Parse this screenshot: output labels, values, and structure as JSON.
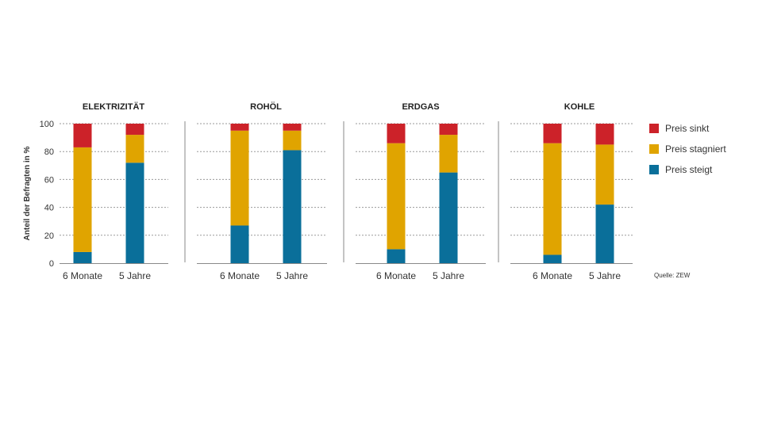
{
  "chart_data": {
    "type": "bar",
    "stacked": true,
    "ylabel": "Anteil der Befragten in %",
    "ylim": [
      0,
      100
    ],
    "yticks": [
      0,
      20,
      40,
      60,
      80,
      100
    ],
    "grid": true,
    "legend_position": "right",
    "source": "Quelle: ZEW",
    "categories": [
      "6 Monate",
      "5 Jahre"
    ],
    "series_meta": [
      {
        "name": "Preis steigt",
        "color": "#0a6f9a"
      },
      {
        "name": "Preis stagniert",
        "color": "#e0a400"
      },
      {
        "name": "Preis sinkt",
        "color": "#cc2229"
      }
    ],
    "legend_order": [
      "Preis sinkt",
      "Preis stagniert",
      "Preis steigt"
    ],
    "panels": [
      {
        "title": "ELEKTRIZITÄT",
        "series": [
          {
            "name": "Preis steigt",
            "values": [
              8,
              72
            ]
          },
          {
            "name": "Preis stagniert",
            "values": [
              75,
              20
            ]
          },
          {
            "name": "Preis sinkt",
            "values": [
              17,
              8
            ]
          }
        ]
      },
      {
        "title": "ROHÖL",
        "series": [
          {
            "name": "Preis steigt",
            "values": [
              27,
              81
            ]
          },
          {
            "name": "Preis stagniert",
            "values": [
              68,
              14
            ]
          },
          {
            "name": "Preis sinkt",
            "values": [
              5,
              5
            ]
          }
        ]
      },
      {
        "title": "ERDGAS",
        "series": [
          {
            "name": "Preis steigt",
            "values": [
              10,
              65
            ]
          },
          {
            "name": "Preis stagniert",
            "values": [
              76,
              27
            ]
          },
          {
            "name": "Preis sinkt",
            "values": [
              14,
              8
            ]
          }
        ]
      },
      {
        "title": "KOHLE",
        "series": [
          {
            "name": "Preis steigt",
            "values": [
              6,
              42
            ]
          },
          {
            "name": "Preis stagniert",
            "values": [
              80,
              43
            ]
          },
          {
            "name": "Preis sinkt",
            "values": [
              14,
              15
            ]
          }
        ]
      }
    ]
  }
}
